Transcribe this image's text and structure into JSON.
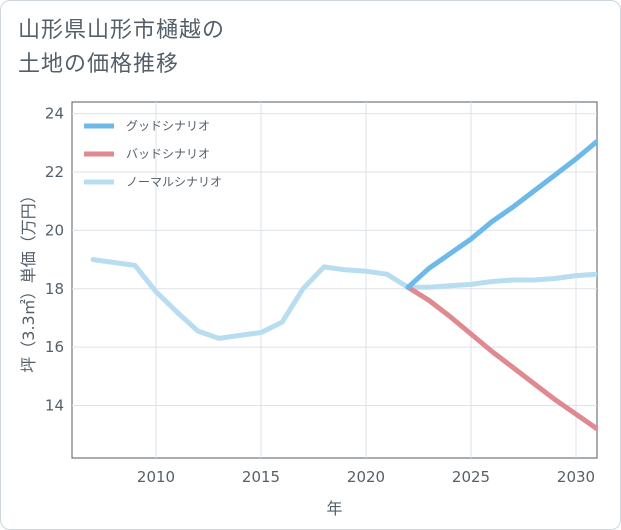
{
  "title_lines": [
    "山形県山形市樋越の",
    "土地の価格推移"
  ],
  "chart_data": {
    "type": "line",
    "xlabel": "年",
    "ylabel": "坪（3.3㎡）単価（万円）",
    "xlim": [
      2006,
      2031
    ],
    "ylim": [
      12.2,
      24.4
    ],
    "x_ticks": [
      2010,
      2015,
      2020,
      2025,
      2030
    ],
    "y_ticks": [
      14,
      16,
      18,
      20,
      22,
      24
    ],
    "grid": true,
    "legend_position": "top-left",
    "series": [
      {
        "name": "グッドシナリオ",
        "color": "#6cb9ea",
        "x": [
          2022,
          2023,
          2024,
          2025,
          2026,
          2027,
          2028,
          2029,
          2030,
          2031
        ],
        "y": [
          18.05,
          18.7,
          19.2,
          19.7,
          20.3,
          20.8,
          21.35,
          21.9,
          22.45,
          23.05
        ]
      },
      {
        "name": "バッドシナリオ",
        "color": "#df8a90",
        "x": [
          2022,
          2023,
          2024,
          2025,
          2026,
          2027,
          2028,
          2029,
          2030,
          2031
        ],
        "y": [
          18.05,
          17.6,
          17.05,
          16.45,
          15.85,
          15.3,
          14.75,
          14.2,
          13.7,
          13.2
        ]
      },
      {
        "name": "ノーマルシナリオ",
        "color": "#b9ddf0",
        "x": [
          2007,
          2008,
          2009,
          2010,
          2011,
          2012,
          2013,
          2014,
          2015,
          2016,
          2017,
          2018,
          2019,
          2020,
          2021,
          2022,
          2023,
          2024,
          2025,
          2026,
          2027,
          2028,
          2029,
          2030,
          2031
        ],
        "y": [
          19.0,
          18.9,
          18.8,
          17.9,
          17.2,
          16.55,
          16.3,
          16.4,
          16.5,
          16.85,
          18.0,
          18.75,
          18.65,
          18.6,
          18.5,
          18.05,
          18.05,
          18.1,
          18.15,
          18.25,
          18.3,
          18.3,
          18.35,
          18.45,
          18.5
        ]
      }
    ]
  }
}
